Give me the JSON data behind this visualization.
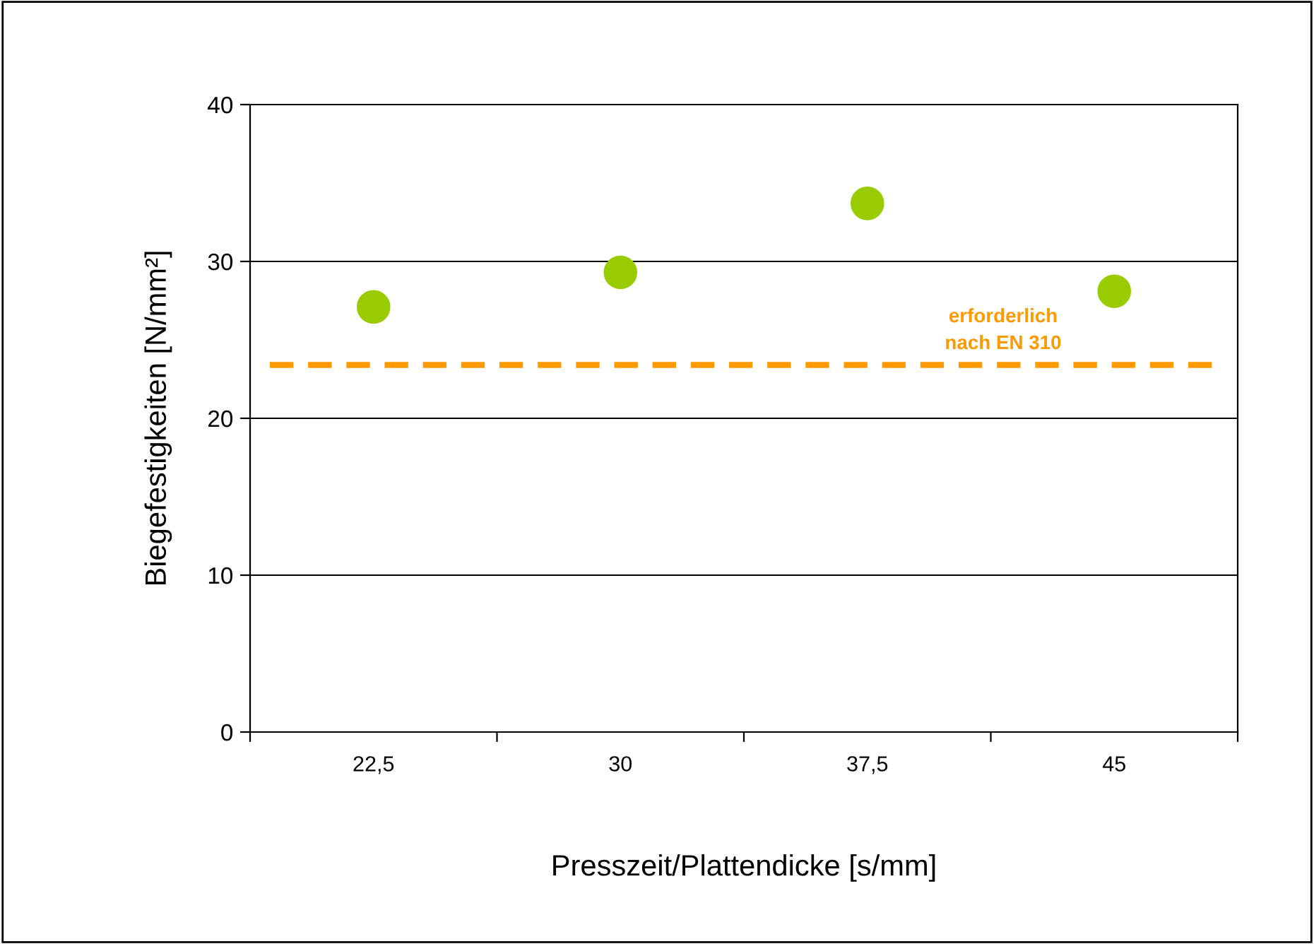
{
  "chart_data": {
    "type": "scatter",
    "xlabel": "Presszeit/Plattendicke [s/mm]",
    "ylabel": "Biegefestigkeiten [N/mm²]",
    "categories": [
      "22,5",
      "30",
      "37,5",
      "45"
    ],
    "series": [
      {
        "color": "#99cc00",
        "values": [
          27.1,
          29.3,
          33.7,
          28.1
        ]
      }
    ],
    "ylim": [
      0,
      40
    ],
    "yticks": [
      0,
      10,
      20,
      30,
      40
    ],
    "grid": "y",
    "marker": "circle",
    "ref_lines": [
      {
        "axis": "y",
        "value": 23.4,
        "label": "erforderlich\nnach EN 310",
        "color": "#ff9900",
        "line_style": "dashed"
      }
    ]
  }
}
